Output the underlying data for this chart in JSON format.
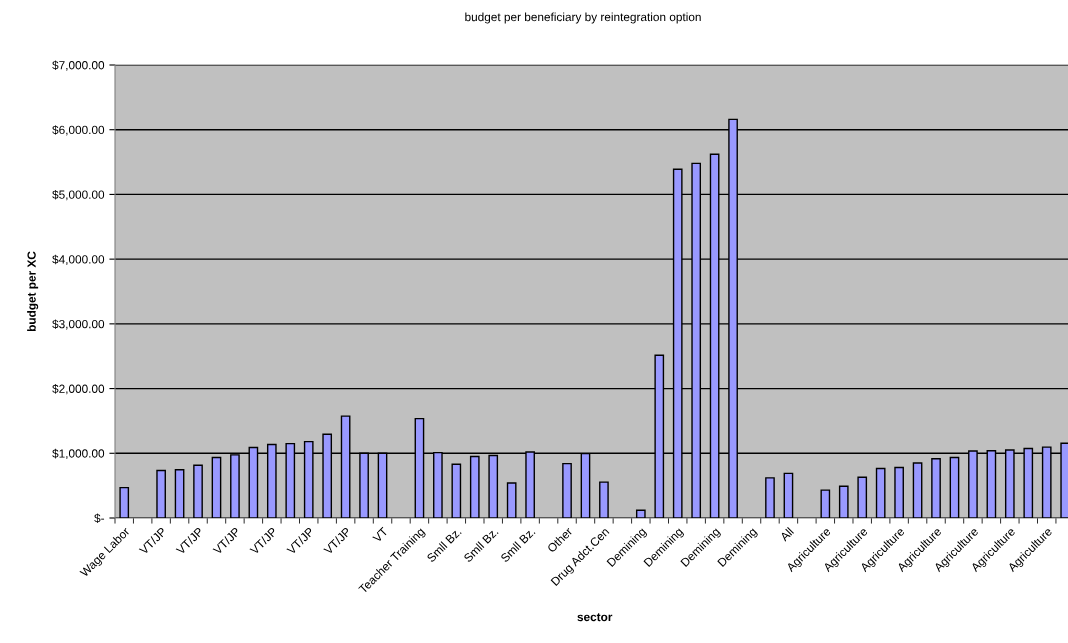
{
  "chart_data": {
    "type": "bar",
    "title": "budget per beneficiary by reintegration option",
    "xlabel": "sector",
    "ylabel": "budget per XC",
    "categories": [
      "Wage Labor",
      null,
      "VT/JP",
      null,
      "VT/JP",
      null,
      "VT/JP",
      null,
      "VT/JP",
      null,
      "VT/JP",
      null,
      "VT/JP",
      null,
      "VT",
      null,
      "Teacher Training",
      null,
      "Smll Bz.",
      null,
      "Smll Bz.",
      null,
      "Smll Bz.",
      null,
      "Other",
      null,
      "Drug Adct.Cen",
      null,
      "Demining",
      null,
      "Demining",
      null,
      "Demining",
      null,
      "Demining",
      null,
      "All",
      null,
      "Agriculture",
      null,
      "Agriculture",
      null,
      "Agriculture",
      null,
      "Agriculture",
      null,
      "Agriculture",
      null,
      "Agriculture",
      null,
      "Agriculture",
      null
    ],
    "values": [
      470,
      null,
      735,
      745,
      815,
      935,
      975,
      1090,
      1135,
      1150,
      1180,
      1295,
      1575,
      1000,
      1000,
      null,
      1535,
      1010,
      830,
      950,
      965,
      540,
      1020,
      null,
      840,
      995,
      555,
      null,
      120,
      2515,
      5390,
      5480,
      5620,
      6160,
      null,
      620,
      690,
      null,
      430,
      490,
      630,
      765,
      780,
      850,
      915,
      935,
      1035,
      1040,
      1050,
      1075,
      1095,
      1155
    ],
    "color": "#9999ff",
    "ylim": [
      0,
      7000
    ],
    "yticks": [
      {
        "value": 0,
        "label": "$-"
      },
      {
        "value": 1000,
        "label": "$1,000.00"
      },
      {
        "value": 2000,
        "label": "$2,000.00"
      },
      {
        "value": 3000,
        "label": "$3,000.00"
      },
      {
        "value": 4000,
        "label": "$4,000.00"
      },
      {
        "value": 5000,
        "label": "$5,000.00"
      },
      {
        "value": 6000,
        "label": "$6,000.00"
      },
      {
        "value": 7000,
        "label": "$7,000.00"
      }
    ],
    "grid": "y"
  }
}
